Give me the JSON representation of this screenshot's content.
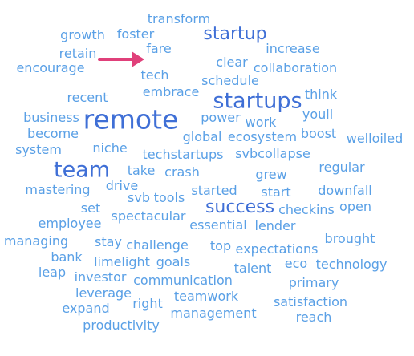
{
  "colors": {
    "light": "#5aa0e6",
    "dark": "#3f6fd6",
    "arrow": "#e0407a"
  },
  "words": [
    {
      "text": "transform",
      "tier": 1
    },
    {
      "text": "growth",
      "tier": 1
    },
    {
      "text": "foster",
      "tier": 1
    },
    {
      "text": "startup",
      "tier": 2
    },
    {
      "text": "retain",
      "tier": 1
    },
    {
      "text": "fare",
      "tier": 1
    },
    {
      "text": "increase",
      "tier": 1
    },
    {
      "text": "encourage",
      "tier": 1
    },
    {
      "text": "clear",
      "tier": 1
    },
    {
      "text": "collaboration",
      "tier": 1
    },
    {
      "text": "tech",
      "tier": 1
    },
    {
      "text": "schedule",
      "tier": 1
    },
    {
      "text": "recent",
      "tier": 1
    },
    {
      "text": "embrace",
      "tier": 1
    },
    {
      "text": "startups",
      "tier": 3
    },
    {
      "text": "think",
      "tier": 1
    },
    {
      "text": "business",
      "tier": 1
    },
    {
      "text": "remote",
      "tier": 4
    },
    {
      "text": "power",
      "tier": 1
    },
    {
      "text": "work",
      "tier": 1
    },
    {
      "text": "youll",
      "tier": 1
    },
    {
      "text": "become",
      "tier": 1
    },
    {
      "text": "global",
      "tier": 1
    },
    {
      "text": "ecosystem",
      "tier": 1
    },
    {
      "text": "boost",
      "tier": 1
    },
    {
      "text": "welloiled",
      "tier": 1
    },
    {
      "text": "system",
      "tier": 1
    },
    {
      "text": "niche",
      "tier": 1
    },
    {
      "text": "techstartups",
      "tier": 1
    },
    {
      "text": "svbcollapse",
      "tier": 1
    },
    {
      "text": "team",
      "tier": 3
    },
    {
      "text": "take",
      "tier": 1
    },
    {
      "text": "crash",
      "tier": 1
    },
    {
      "text": "grew",
      "tier": 1
    },
    {
      "text": "regular",
      "tier": 1
    },
    {
      "text": "mastering",
      "tier": 1
    },
    {
      "text": "drive",
      "tier": 1
    },
    {
      "text": "svb",
      "tier": 1
    },
    {
      "text": "tools",
      "tier": 1
    },
    {
      "text": "started",
      "tier": 1
    },
    {
      "text": "start",
      "tier": 1
    },
    {
      "text": "downfall",
      "tier": 1
    },
    {
      "text": "set",
      "tier": 1
    },
    {
      "text": "success",
      "tier": 2
    },
    {
      "text": "checkins",
      "tier": 1
    },
    {
      "text": "open",
      "tier": 1
    },
    {
      "text": "employee",
      "tier": 1
    },
    {
      "text": "spectacular",
      "tier": 1
    },
    {
      "text": "essential",
      "tier": 1
    },
    {
      "text": "lender",
      "tier": 1
    },
    {
      "text": "managing",
      "tier": 1
    },
    {
      "text": "stay",
      "tier": 1
    },
    {
      "text": "challenge",
      "tier": 1
    },
    {
      "text": "top",
      "tier": 1
    },
    {
      "text": "expectations",
      "tier": 1
    },
    {
      "text": "brought",
      "tier": 1
    },
    {
      "text": "bank",
      "tier": 1
    },
    {
      "text": "limelight",
      "tier": 1
    },
    {
      "text": "goals",
      "tier": 1
    },
    {
      "text": "talent",
      "tier": 1
    },
    {
      "text": "eco",
      "tier": 1
    },
    {
      "text": "technology",
      "tier": 1
    },
    {
      "text": "leap",
      "tier": 1
    },
    {
      "text": "investor",
      "tier": 1
    },
    {
      "text": "communication",
      "tier": 1
    },
    {
      "text": "primary",
      "tier": 1
    },
    {
      "text": "leverage",
      "tier": 1
    },
    {
      "text": "teamwork",
      "tier": 1
    },
    {
      "text": "expand",
      "tier": 1
    },
    {
      "text": "right",
      "tier": 1
    },
    {
      "text": "satisfaction",
      "tier": 1
    },
    {
      "text": "management",
      "tier": 1
    },
    {
      "text": "reach",
      "tier": 1
    },
    {
      "text": "productivity",
      "tier": 1
    }
  ]
}
